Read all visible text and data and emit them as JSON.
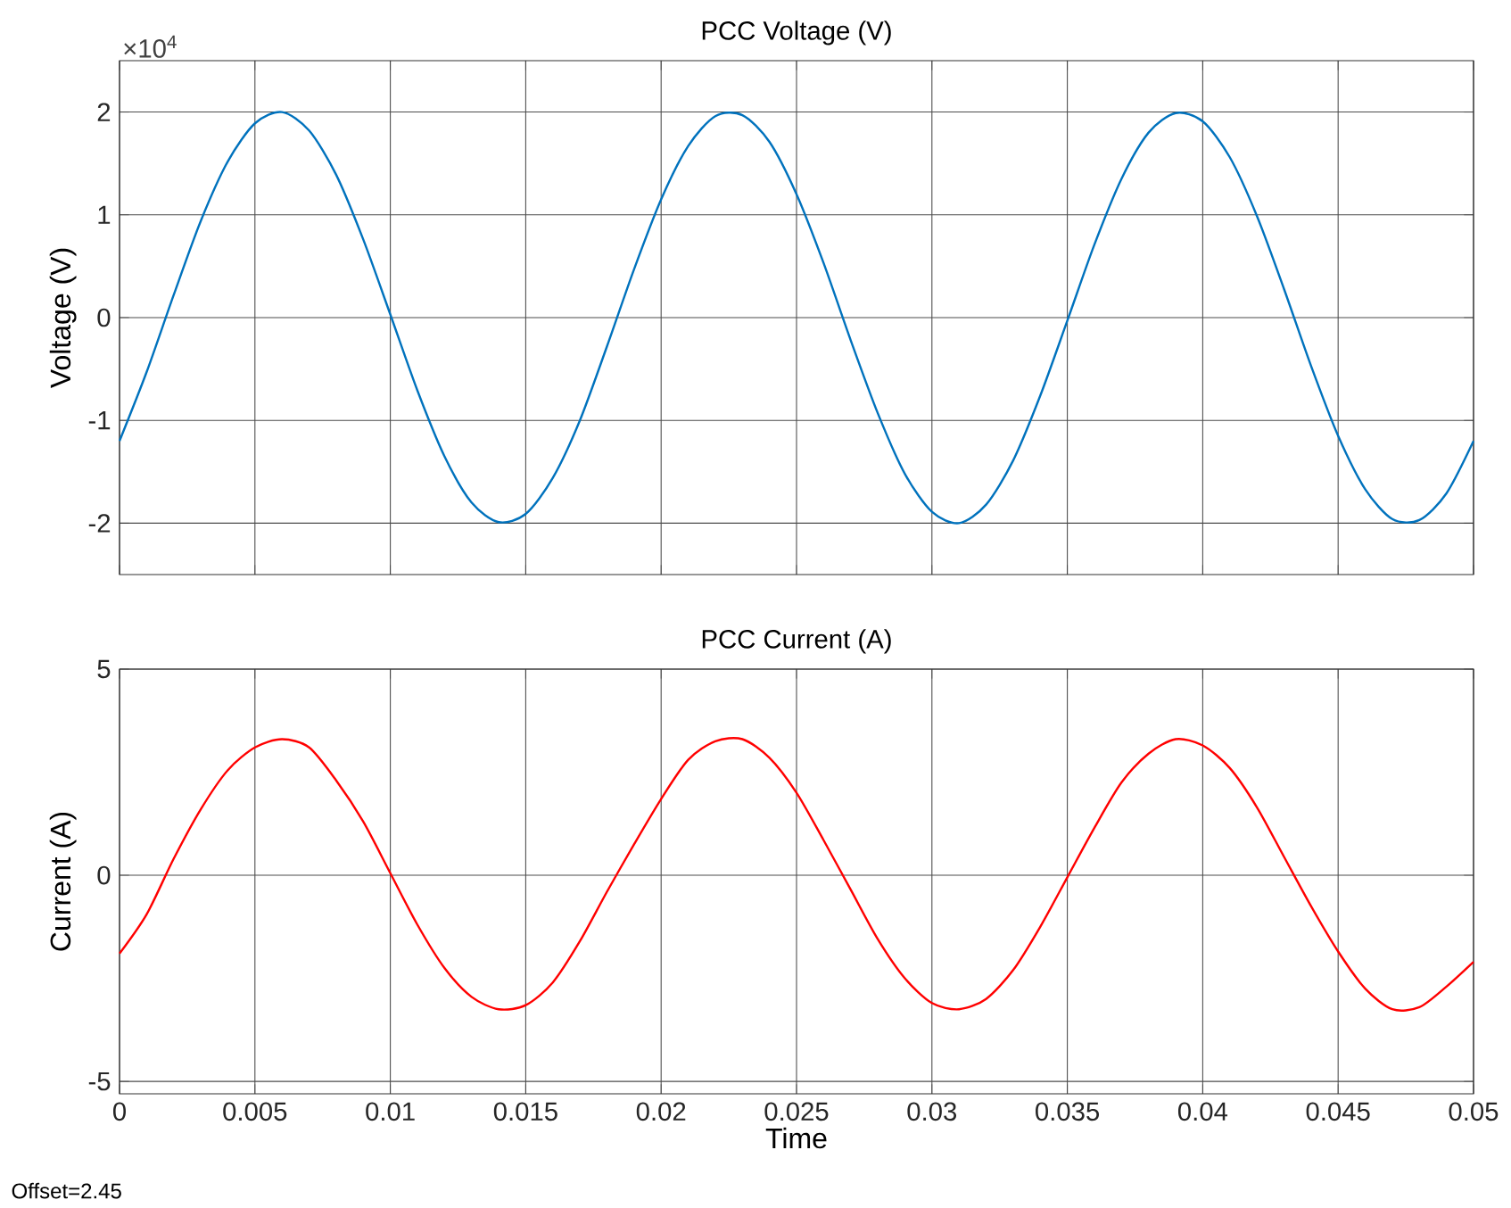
{
  "chart_data": [
    {
      "type": "line",
      "title": "PCC Voltage (V)",
      "ylabel": "Voltage (V)",
      "annotations": [
        "×10$^{4}$"
      ],
      "x": [
        0,
        0.001,
        0.002,
        0.003,
        0.004,
        0.005,
        0.006,
        0.007,
        0.008,
        0.009,
        0.01,
        0.011,
        0.012,
        0.013,
        0.014,
        0.015,
        0.016,
        0.017,
        0.018,
        0.019,
        0.02,
        0.021,
        0.022,
        0.023,
        0.024,
        0.025,
        0.026,
        0.027,
        0.028,
        0.029,
        0.03,
        0.031,
        0.032,
        0.033,
        0.034,
        0.035,
        0.036,
        0.037,
        0.038,
        0.039,
        0.04,
        0.041,
        0.042,
        0.043,
        0.044,
        0.045,
        0.046,
        0.047,
        0.048,
        0.049,
        0.05
      ],
      "series": [
        {
          "color": "#0072bd",
          "values": [
            -1.2,
            -0.53,
            0.22,
            0.94,
            1.52,
            1.89,
            2.0,
            1.82,
            1.39,
            0.76,
            0.03,
            -0.71,
            -1.35,
            -1.8,
            -1.99,
            -1.91,
            -1.56,
            -1.0,
            -0.28,
            0.47,
            1.15,
            1.67,
            1.96,
            1.97,
            1.71,
            1.2,
            0.53,
            -0.22,
            -0.93,
            -1.52,
            -1.89,
            -2.0,
            -1.82,
            -1.39,
            -0.76,
            -0.03,
            0.71,
            1.35,
            1.8,
            1.99,
            1.91,
            1.56,
            0.99,
            0.28,
            -0.47,
            -1.15,
            -1.67,
            -1.96,
            -1.97,
            -1.71,
            -1.2
          ]
        }
      ],
      "xlim": [
        0,
        0.05
      ],
      "xticks": [
        0,
        0.005,
        0.01,
        0.015,
        0.02,
        0.025,
        0.03,
        0.035,
        0.04,
        0.045,
        0.05
      ],
      "ylim": [
        -2.5,
        2.5
      ],
      "yticks": [
        -2,
        -1,
        0,
        1,
        2
      ],
      "tick_labels": "y",
      "grid": true
    },
    {
      "type": "line",
      "title": "PCC Current (A)",
      "ylabel": "Current (A)",
      "xlabel": "Time",
      "annotations": [
        "Offset=2.45"
      ],
      "x": [
        0,
        0.001,
        0.002,
        0.003,
        0.004,
        0.005,
        0.006,
        0.007,
        0.008,
        0.009,
        0.01,
        0.011,
        0.012,
        0.013,
        0.014,
        0.015,
        0.016,
        0.017,
        0.018,
        0.019,
        0.02,
        0.021,
        0.022,
        0.023,
        0.024,
        0.025,
        0.026,
        0.027,
        0.028,
        0.029,
        0.03,
        0.031,
        0.032,
        0.033,
        0.034,
        0.035,
        0.036,
        0.037,
        0.038,
        0.039,
        0.04,
        0.041,
        0.042,
        0.043,
        0.044,
        0.045,
        0.046,
        0.047,
        0.048,
        0.049,
        0.05
      ],
      "series": [
        {
          "color": "#ff0000",
          "values": [
            -1.9,
            -0.95,
            0.4,
            1.6,
            2.55,
            3.1,
            3.3,
            3.1,
            2.3,
            1.3,
            0.05,
            -1.2,
            -2.25,
            -2.95,
            -3.25,
            -3.15,
            -2.6,
            -1.6,
            -0.4,
            0.75,
            1.85,
            2.8,
            3.25,
            3.3,
            2.85,
            2.0,
            0.85,
            -0.35,
            -1.55,
            -2.5,
            -3.1,
            -3.25,
            -3.0,
            -2.3,
            -1.25,
            -0.05,
            1.15,
            2.25,
            2.95,
            3.3,
            3.15,
            2.6,
            1.65,
            0.45,
            -0.75,
            -1.85,
            -2.75,
            -3.25,
            -3.2,
            -2.7,
            -2.1
          ]
        }
      ],
      "xlim": [
        0,
        0.05
      ],
      "xticks": [
        0,
        0.005,
        0.01,
        0.015,
        0.02,
        0.025,
        0.03,
        0.035,
        0.04,
        0.045,
        0.05
      ],
      "ylim": [
        -5.3,
        5
      ],
      "yticks": [
        -5,
        0,
        5
      ],
      "grid": true
    }
  ]
}
